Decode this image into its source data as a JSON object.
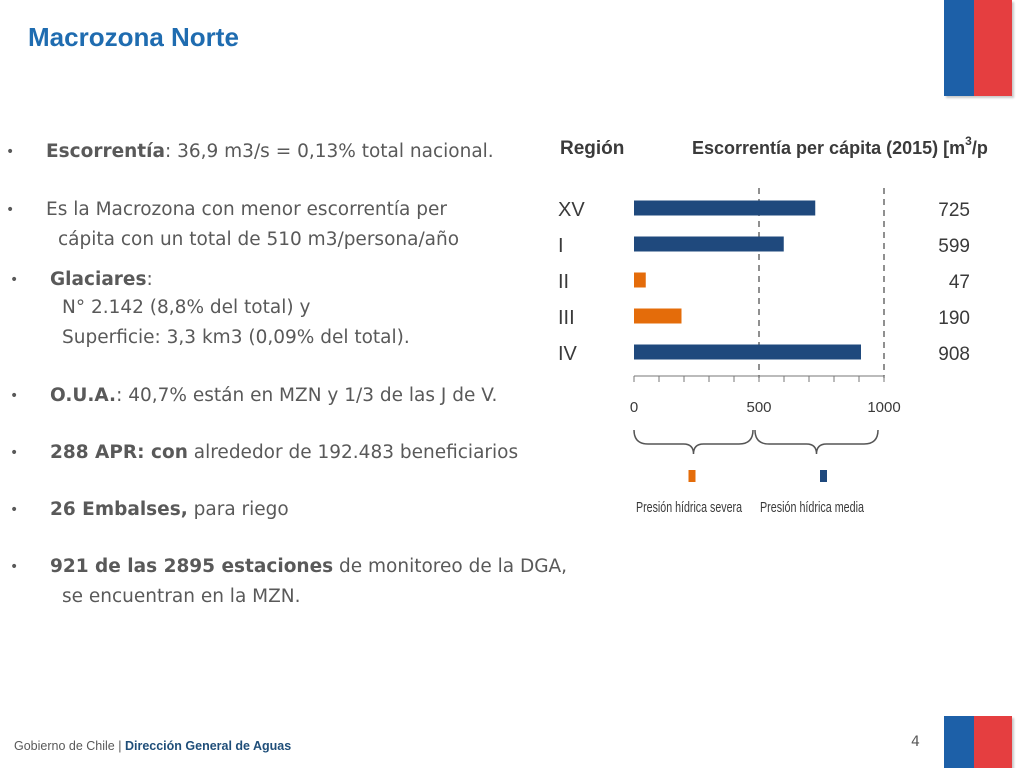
{
  "slide": {
    "title": "Macrozona Norte",
    "page_number": "4",
    "footer_left": "Gobierno de Chile | ",
    "footer_right": "Dirección General de Aguas"
  },
  "bullets": [
    {
      "bold": "Escorrentía",
      "text": ": 36,9 m3/s = 0,13% total nacional."
    },
    {
      "bold": "",
      "text": "Es la Macrozona con menor escorrentía per",
      "text2": "cápita con un total de 510 m3/persona/año"
    },
    {
      "bold": "Glaciares",
      "text": ":",
      "text2": "N°  2.142 (8,8% del total) y",
      "text3": "Superficie: 3,3 km3 (0,09% del total)."
    },
    {
      "bold": "O.U.A.",
      "text": ": 40,7% están en MZN y 1/3 de las J de V."
    },
    {
      "bold": "288 APR: con",
      "text": " alrededor de 192.483 beneficiarios"
    },
    {
      "bold": "26 Embalses,",
      "text": " para riego"
    },
    {
      "bold": "921 de las 2895 estaciones",
      "text": " de monitoreo de la DGA,",
      "text2": "se encuentran en la MZN."
    }
  ],
  "chart_data": {
    "type": "bar",
    "orientation": "horizontal",
    "row_header": "Región",
    "title": "Escorrentía per cápita (2015)  [m",
    "title_sup": "3",
    "title_tail": "/persona/año]",
    "categories": [
      "XV",
      "I",
      "II",
      "III",
      "IV"
    ],
    "values": [
      725,
      599,
      47,
      190,
      908
    ],
    "value_labels": [
      "725",
      "599",
      "47",
      "190",
      "908"
    ],
    "bar_colors": [
      "#1f497d",
      "#1f497d",
      "#e46c0a",
      "#e46c0a",
      "#1f497d"
    ],
    "xlim": [
      0,
      1000
    ],
    "ticks": [
      "0",
      "500",
      "1000"
    ],
    "tick_values": [
      0,
      500,
      1000
    ],
    "reference_lines": [
      500,
      1000
    ],
    "legend": [
      {
        "label": "Presión hídrica severa",
        "color": "#e46c0a"
      },
      {
        "label": "Presión hídrica media",
        "color": "#1f497d"
      }
    ]
  }
}
